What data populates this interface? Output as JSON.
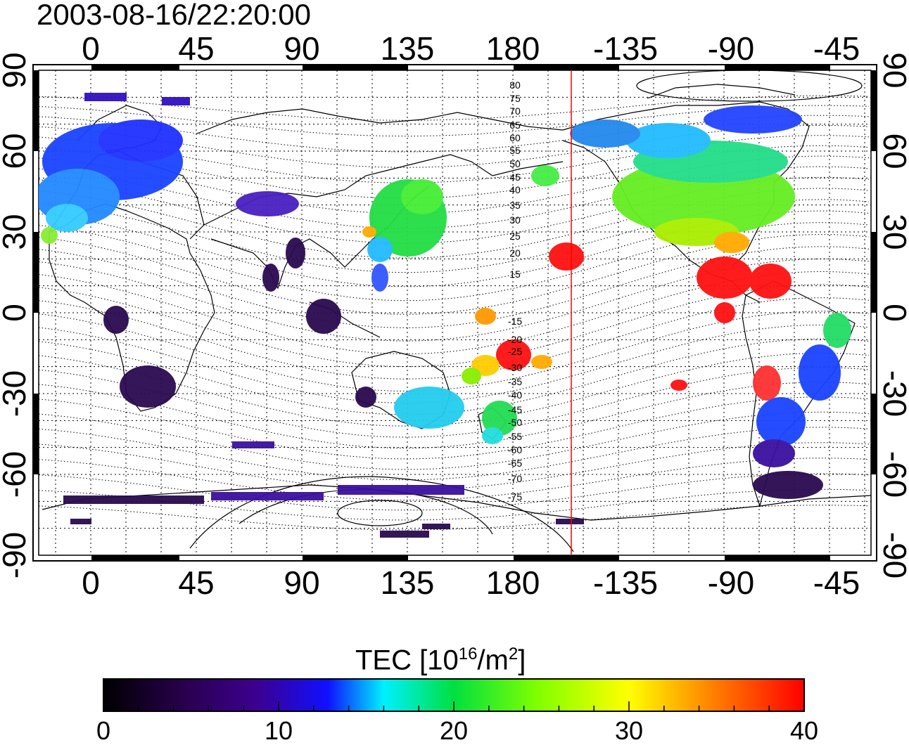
{
  "title": "2003-08-16/22:20:00",
  "map": {
    "lon_ticks": [
      "0",
      "45",
      "90",
      "135",
      "180",
      "-135",
      "-90",
      "-45"
    ],
    "lat_ticks_left": [
      "90",
      "60",
      "30",
      "0",
      "-30",
      "-60",
      "-90"
    ],
    "lat_ticks_right": [
      "90",
      "60",
      "30",
      "0",
      "-30",
      "-60",
      "-90"
    ],
    "contour_labels": [
      "80",
      "75",
      "70",
      "65",
      "60",
      "55",
      "50",
      "45",
      "40",
      "35",
      "30",
      "25",
      "20",
      "15",
      "-15",
      "-20",
      "-25",
      "-30",
      "-35",
      "-40",
      "-45",
      "-50",
      "-55",
      "-60",
      "-65",
      "-70",
      "-75"
    ],
    "marker_line_color": "#ff0000"
  },
  "colorbar": {
    "label_main": "TEC  [10",
    "label_exp1": "16",
    "label_mid": "/m",
    "label_exp2": "2",
    "label_end": "]",
    "ticks": [
      "0",
      "10",
      "20",
      "30",
      "40"
    ],
    "min": 0,
    "max": 40,
    "colors": [
      "#000000",
      "#2a0050",
      "#3c0090",
      "#2a30ff",
      "#00f0ff",
      "#00e040",
      "#80ff00",
      "#ffff00",
      "#ff8000",
      "#ff0000"
    ]
  }
}
